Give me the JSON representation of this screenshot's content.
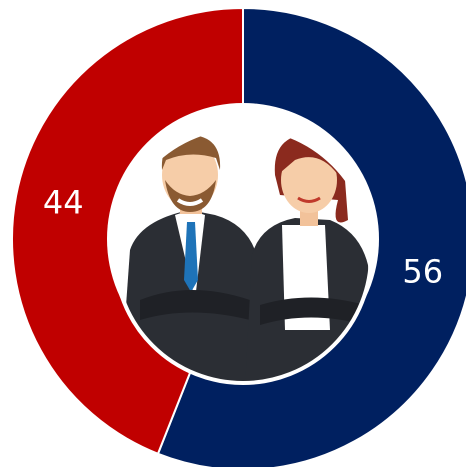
{
  "chart_data": {
    "type": "donut",
    "values": [
      56,
      44
    ],
    "colors": [
      "#002060",
      "#c00000"
    ]
  }
}
